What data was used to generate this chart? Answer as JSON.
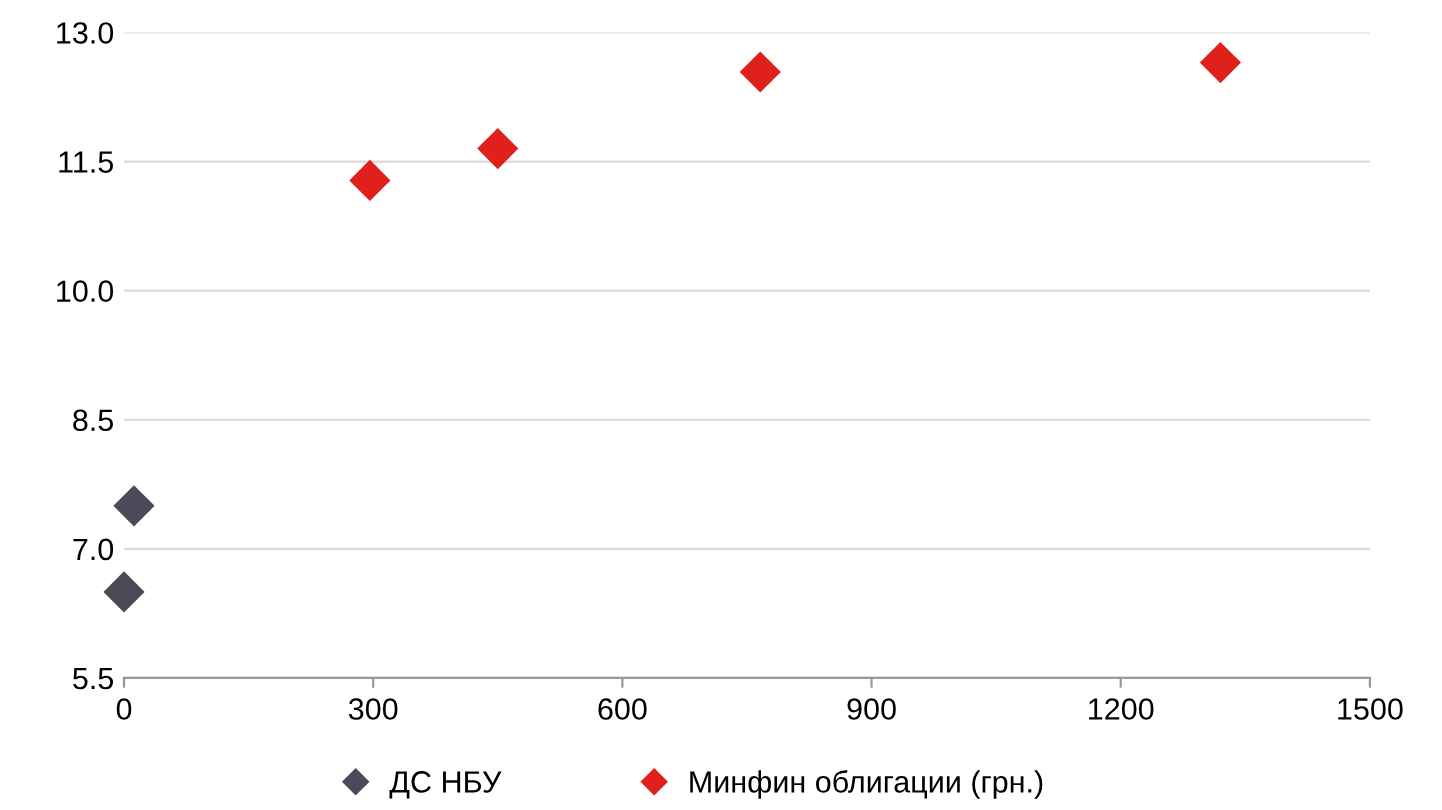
{
  "chart_data": {
    "type": "scatter",
    "marker": "diamond",
    "grid": "y",
    "legend": "bottom",
    "xlim": [
      0,
      1500
    ],
    "xticks": [
      0,
      300,
      600,
      900,
      1200,
      1500
    ],
    "ylim": [
      5.5,
      13.0
    ],
    "yticks": [
      {
        "value": 5.5,
        "label": "5.5"
      },
      {
        "value": 7.0,
        "label": "7.0"
      },
      {
        "value": 8.5,
        "label": "8.5"
      },
      {
        "value": 10.0,
        "label": "10.0"
      },
      {
        "value": 11.5,
        "label": "11.5"
      },
      {
        "value": 13.0,
        "label": "13.0"
      }
    ],
    "series": [
      {
        "name": "ДС НБУ",
        "color": "#4a4a58",
        "x": [
          0,
          12
        ],
        "values": [
          6.5,
          7.5
        ]
      },
      {
        "name": "Минфин облигации (грн.)",
        "color": "#e0201b",
        "x": [
          296,
          450,
          766,
          1320
        ],
        "values": [
          11.28,
          11.65,
          12.54,
          12.65
        ]
      }
    ]
  }
}
